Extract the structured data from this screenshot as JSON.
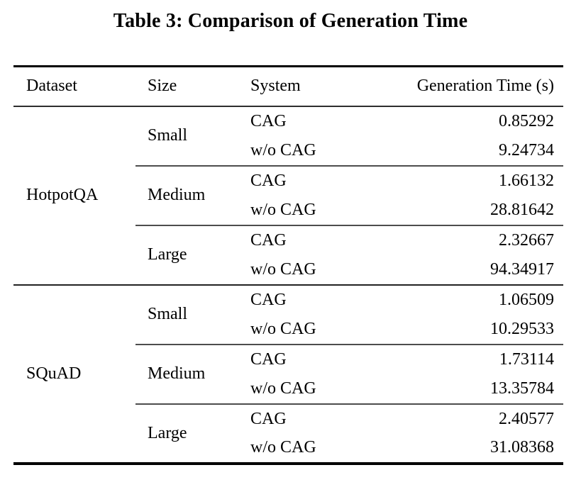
{
  "caption": "Table 3: Comparison of Generation Time",
  "table": {
    "headers": {
      "dataset": "Dataset",
      "size": "Size",
      "system": "System",
      "time": "Generation Time (s)"
    },
    "datasets": [
      {
        "name": "HotpotQA",
        "groups": [
          {
            "size": "Small",
            "rows": [
              {
                "system": "CAG",
                "time": "0.85292"
              },
              {
                "system": "w/o CAG",
                "time": "9.24734"
              }
            ]
          },
          {
            "size": "Medium",
            "rows": [
              {
                "system": "CAG",
                "time": "1.66132"
              },
              {
                "system": "w/o CAG",
                "time": "28.81642"
              }
            ]
          },
          {
            "size": "Large",
            "rows": [
              {
                "system": "CAG",
                "time": "2.32667"
              },
              {
                "system": "w/o CAG",
                "time": "94.34917"
              }
            ]
          }
        ]
      },
      {
        "name": "SQuAD",
        "groups": [
          {
            "size": "Small",
            "rows": [
              {
                "system": "CAG",
                "time": "1.06509"
              },
              {
                "system": "w/o CAG",
                "time": "10.29533"
              }
            ]
          },
          {
            "size": "Medium",
            "rows": [
              {
                "system": "CAG",
                "time": "1.73114"
              },
              {
                "system": "w/o CAG",
                "time": "13.35784"
              }
            ]
          },
          {
            "size": "Large",
            "rows": [
              {
                "system": "CAG",
                "time": "2.40577"
              },
              {
                "system": "w/o CAG",
                "time": "31.08368"
              }
            ]
          }
        ]
      }
    ]
  },
  "chart_data": {
    "type": "table",
    "title": "Table 3: Comparison of Generation Time",
    "columns": [
      "Dataset",
      "Size",
      "System",
      "Generation Time (s)"
    ],
    "rows": [
      [
        "HotpotQA",
        "Small",
        "CAG",
        0.85292
      ],
      [
        "HotpotQA",
        "Small",
        "w/o CAG",
        9.24734
      ],
      [
        "HotpotQA",
        "Medium",
        "CAG",
        1.66132
      ],
      [
        "HotpotQA",
        "Medium",
        "w/o CAG",
        28.81642
      ],
      [
        "HotpotQA",
        "Large",
        "CAG",
        2.32667
      ],
      [
        "HotpotQA",
        "Large",
        "w/o CAG",
        94.34917
      ],
      [
        "SQuAD",
        "Small",
        "CAG",
        1.06509
      ],
      [
        "SQuAD",
        "Small",
        "w/o CAG",
        10.29533
      ],
      [
        "SQuAD",
        "Medium",
        "CAG",
        1.73114
      ],
      [
        "SQuAD",
        "Medium",
        "w/o CAG",
        13.35784
      ],
      [
        "SQuAD",
        "Large",
        "CAG",
        2.40577
      ],
      [
        "SQuAD",
        "Large",
        "w/o CAG",
        31.08368
      ]
    ]
  }
}
